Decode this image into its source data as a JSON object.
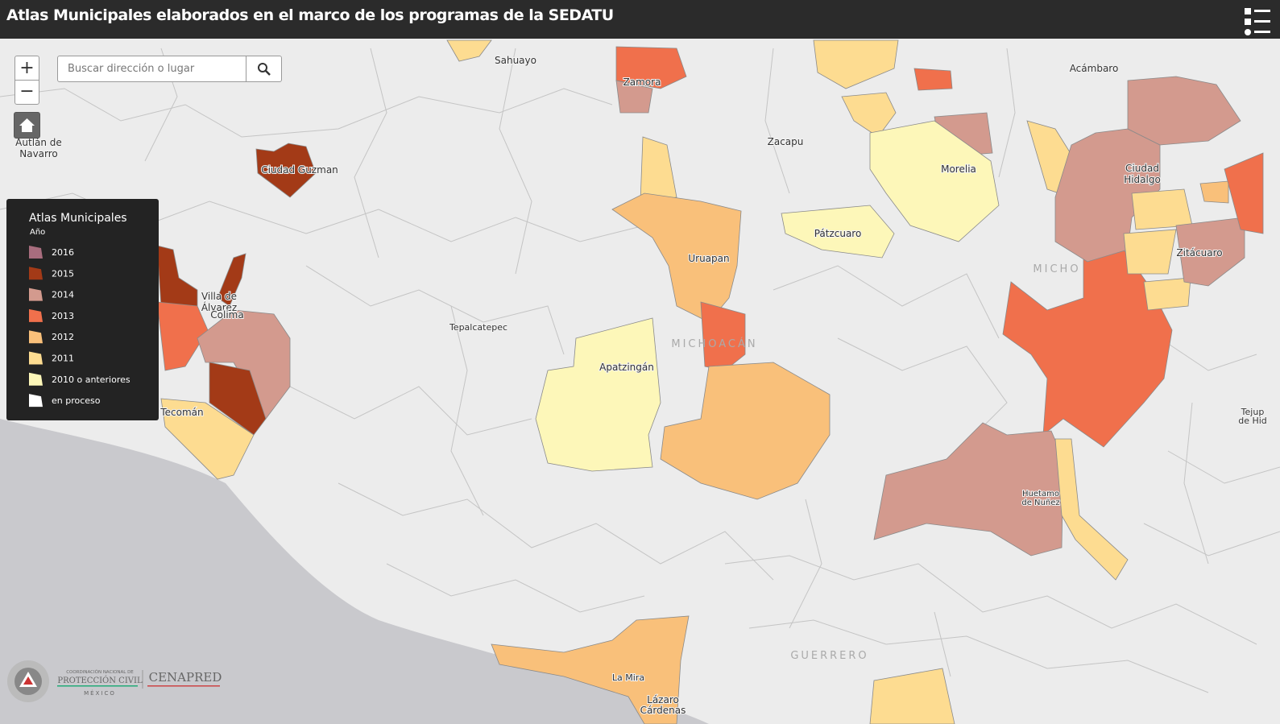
{
  "header": {
    "title": "Atlas Municipales elaborados en el marco de los programas de la SEDATU"
  },
  "search": {
    "placeholder": "Buscar dirección o lugar"
  },
  "legend": {
    "title": "Atlas Municipales",
    "subtitle": "Año",
    "items": [
      {
        "label": "2016",
        "color": "#a86d7e"
      },
      {
        "label": "2015",
        "color": "#a33a17"
      },
      {
        "label": "2014",
        "color": "#d39a8e"
      },
      {
        "label": "2013",
        "color": "#f0704c"
      },
      {
        "label": "2012",
        "color": "#f9c07a"
      },
      {
        "label": "2011",
        "color": "#fddc91"
      },
      {
        "label": "2010 o anteriores",
        "color": "#fdf7b9"
      },
      {
        "label": "en proceso",
        "color": "#ffffff"
      }
    ]
  },
  "places": [
    "Sahuayo",
    "Zamora",
    "Acámbaro",
    "Autlán de",
    "Navarro",
    "Ciudad Guzman",
    "Zacapu",
    "Morelia",
    "Ciudad",
    "Hidalgo",
    "Pátzcuaro",
    "Uruapan",
    "Zitácuaro",
    "MICHO",
    "MICHOACÁN",
    "Villa de",
    "Álvarez",
    "Colima",
    "Tepalcatepec",
    "Apatzingán",
    "Tecomán",
    "Huetamo",
    "de Nuñez",
    "GUERRERO",
    "La Mira",
    "Lázaro",
    "Cárdenas",
    "Tejup",
    "de Hid"
  ],
  "logo": {
    "line1": "COORDINACIÓN NACIONAL DE",
    "line2": "PROTECCIÓN CIVIL",
    "line3": "MÉXICO",
    "brand": "CENAPRED"
  }
}
